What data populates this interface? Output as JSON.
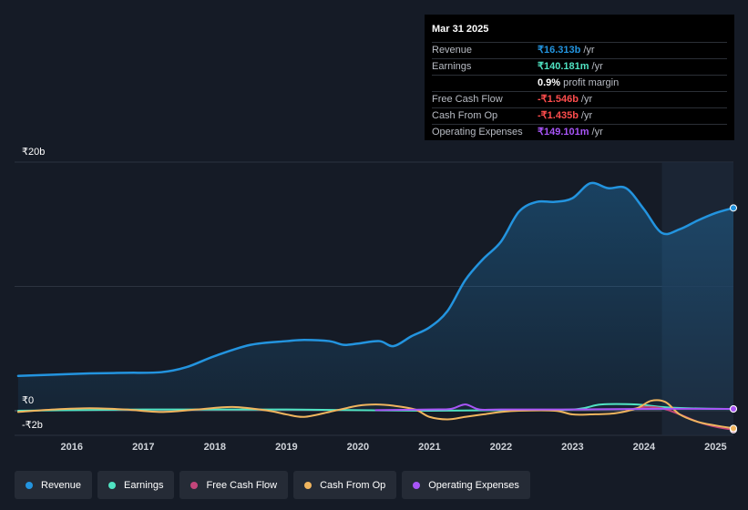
{
  "tooltip": {
    "date": "Mar 31 2025",
    "rows": [
      {
        "label": "Revenue",
        "value": "₹16.313b",
        "unit": "/yr",
        "color": "#2394df"
      },
      {
        "label": "Earnings",
        "value": "₹140.181m",
        "unit": "/yr",
        "color": "#50e3c2"
      },
      {
        "label": "",
        "value": "0.9%",
        "unit": "profit margin",
        "color": "#ffffff"
      },
      {
        "label": "Free Cash Flow",
        "value": "-₹1.546b",
        "unit": "/yr",
        "color": "#ff4d4d"
      },
      {
        "label": "Cash From Op",
        "value": "-₹1.435b",
        "unit": "/yr",
        "color": "#ff4d4d"
      },
      {
        "label": "Operating Expenses",
        "value": "₹149.101m",
        "unit": "/yr",
        "color": "#a855f7"
      }
    ]
  },
  "chart_data": {
    "type": "line",
    "y_tick_labels": [
      "₹20b",
      "₹0",
      "-₹2b"
    ],
    "x_tick_labels": [
      "2016",
      "2017",
      "2018",
      "2019",
      "2020",
      "2021",
      "2022",
      "2023",
      "2024",
      "2025"
    ],
    "ylim": [
      -2,
      20
    ],
    "xlim": [
      2015.2,
      2025.25
    ],
    "grid": true,
    "legend_position": "bottom",
    "highlight_start": 2024.25,
    "series": [
      {
        "name": "Revenue",
        "color": "#2394df",
        "x": [
          2015.25,
          2015.75,
          2016.25,
          2016.75,
          2017.25,
          2017.6,
          2018.0,
          2018.5,
          2019.0,
          2019.25,
          2019.6,
          2019.8,
          2020.0,
          2020.3,
          2020.5,
          2020.75,
          2021.0,
          2021.25,
          2021.5,
          2021.75,
          2022.0,
          2022.25,
          2022.5,
          2022.75,
          2023.0,
          2023.25,
          2023.5,
          2023.75,
          2024.0,
          2024.25,
          2024.5,
          2024.75,
          2025.0,
          2025.25
        ],
        "values": [
          2.8,
          2.9,
          3.0,
          3.05,
          3.1,
          3.5,
          4.4,
          5.3,
          5.6,
          5.7,
          5.6,
          5.3,
          5.4,
          5.6,
          5.2,
          6.0,
          6.7,
          8.0,
          10.5,
          12.2,
          13.6,
          16.0,
          16.8,
          16.8,
          17.1,
          18.3,
          17.9,
          17.9,
          16.2,
          14.3,
          14.6,
          15.3,
          15.9,
          16.313
        ]
      },
      {
        "name": "Earnings",
        "color": "#50e3c2",
        "x": [
          2015.25,
          2016.0,
          2017.0,
          2018.0,
          2019.0,
          2020.0,
          2021.0,
          2022.0,
          2023.0,
          2023.4,
          2023.9,
          2024.25,
          2024.6,
          2025.25
        ],
        "values": [
          0.0,
          0.05,
          0.1,
          0.1,
          0.1,
          0.05,
          0.0,
          0.05,
          0.1,
          0.5,
          0.5,
          0.3,
          0.2,
          0.14
        ]
      },
      {
        "name": "Free Cash Flow",
        "color": "#c2457a",
        "x": [
          2023.75,
          2024.0,
          2024.25,
          2024.5,
          2024.75,
          2025.0,
          2025.25
        ],
        "values": [
          0.0,
          0.3,
          0.2,
          -0.3,
          -0.9,
          -1.3,
          -1.546
        ]
      },
      {
        "name": "Cash From Op",
        "color": "#f0b55e",
        "x": [
          2015.25,
          2015.75,
          2016.25,
          2016.75,
          2017.25,
          2017.75,
          2018.25,
          2018.75,
          2019.0,
          2019.25,
          2019.6,
          2020.0,
          2020.25,
          2020.5,
          2020.8,
          2021.0,
          2021.25,
          2021.5,
          2021.75,
          2022.0,
          2022.25,
          2022.75,
          2023.0,
          2023.25,
          2023.6,
          2023.9,
          2024.1,
          2024.3,
          2024.5,
          2024.75,
          2025.0,
          2025.25
        ],
        "values": [
          -0.1,
          0.1,
          0.2,
          0.1,
          -0.1,
          0.1,
          0.3,
          0.0,
          -0.3,
          -0.5,
          -0.1,
          0.4,
          0.5,
          0.4,
          0.1,
          -0.5,
          -0.7,
          -0.5,
          -0.3,
          -0.1,
          0.0,
          0.0,
          -0.3,
          -0.3,
          -0.2,
          0.2,
          0.8,
          0.7,
          -0.3,
          -0.9,
          -1.2,
          -1.435
        ]
      },
      {
        "name": "Operating Expenses",
        "color": "#a855f7",
        "x": [
          2020.25,
          2021.0,
          2021.3,
          2021.5,
          2021.7,
          2022.0,
          2023.0,
          2024.0,
          2025.25
        ],
        "values": [
          0.05,
          0.1,
          0.15,
          0.5,
          0.1,
          0.1,
          0.1,
          0.15,
          0.149
        ]
      }
    ]
  },
  "legend": [
    {
      "label": "Revenue",
      "color": "#2394df"
    },
    {
      "label": "Earnings",
      "color": "#50e3c2"
    },
    {
      "label": "Free Cash Flow",
      "color": "#c2457a"
    },
    {
      "label": "Cash From Op",
      "color": "#f0b55e"
    },
    {
      "label": "Operating Expenses",
      "color": "#a855f7"
    }
  ]
}
